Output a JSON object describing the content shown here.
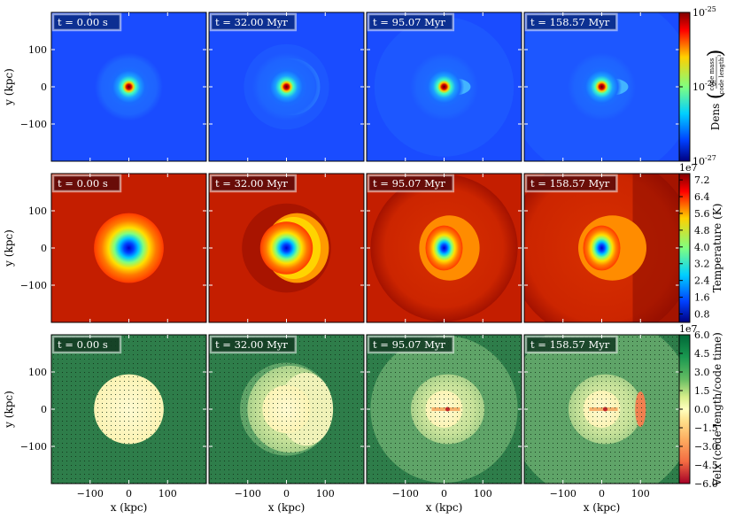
{
  "figure": {
    "times": [
      "t = 0.00 s",
      "t = 32.00 Myr",
      "t = 95.07 Myr",
      "t = 158.57 Myr"
    ],
    "ylabel": "y  (kpc)",
    "xlabel": "x  (kpc)"
  },
  "chart_data": [
    {
      "type": "heatmap",
      "field": "density",
      "colormap": "jet (log)",
      "colorbar_label": "Dens",
      "colorbar_unit_num": "code mass",
      "colorbar_unit_den": "code length",
      "colorbar_unit_den_exp": "3",
      "colorbar_ticks": [
        {
          "base": "10",
          "exp": "-25",
          "value": 1e-25
        },
        {
          "base": "10",
          "exp": "-26",
          "value": 1e-26
        },
        {
          "base": "10",
          "exp": "-27",
          "value": 1e-27
        }
      ],
      "range": [
        1e-27,
        1e-25
      ],
      "xlim": [
        -200,
        200
      ],
      "ylim": [
        -200,
        200
      ],
      "xticks": [
        -100,
        0,
        100
      ],
      "yticks": [
        "100",
        "0",
        "−100"
      ],
      "colors": {
        "background": "#1a4cff",
        "core": "#b00000"
      }
    },
    {
      "type": "heatmap",
      "field": "temperature",
      "colormap": "jet",
      "colorbar_label": "Temperature  (K)",
      "colorbar_multiplier": "1e7",
      "colorbar_ticks": [
        "7.2",
        "6.4",
        "5.6",
        "4.8",
        "4.0",
        "3.2",
        "2.4",
        "1.6",
        "0.8"
      ],
      "colorbar_values": [
        7.2,
        6.4,
        5.6,
        4.8,
        4.0,
        3.2,
        2.4,
        1.6,
        0.8
      ],
      "range": [
        0.4,
        7.5
      ],
      "xlim": [
        -200,
        200
      ],
      "ylim": [
        -200,
        200
      ],
      "xticks": [
        -100,
        0,
        100
      ],
      "yticks": [
        "100",
        "0",
        "−100"
      ],
      "colors": {
        "background": "#c41e00",
        "core": "#0000c8"
      }
    },
    {
      "type": "heatmap",
      "field": "velocity_x",
      "colormap": "RdYlGn",
      "colorbar_label": "Velx  (code length/code time)",
      "colorbar_multiplier": "1e7",
      "colorbar_ticks": [
        "6.0",
        "4.5",
        "3.0",
        "1.5",
        "0.0",
        "−1.5",
        "−3.0",
        "−4.5",
        "−6.0"
      ],
      "colorbar_values": [
        6.0,
        4.5,
        3.0,
        1.5,
        0.0,
        -1.5,
        -3.0,
        -4.5,
        -6.0
      ],
      "range": [
        -6.0,
        6.0
      ],
      "xlim": [
        -200,
        200
      ],
      "ylim": [
        -200,
        200
      ],
      "xticks": [
        "−100",
        "0",
        "100"
      ],
      "yticks": [
        "100",
        "0",
        "−100"
      ],
      "colors": {
        "background": "#2e7d4a",
        "disk": "#fffac8"
      }
    }
  ]
}
